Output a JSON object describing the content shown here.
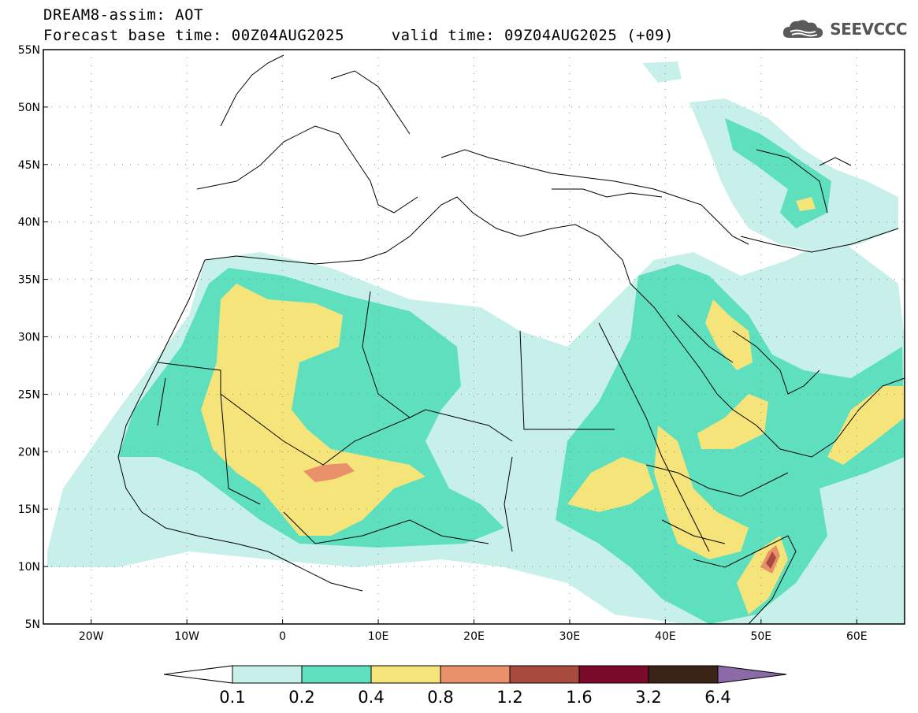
{
  "header": {
    "title_line1": "DREAM8-assim: AOT",
    "title_line2": "Forecast base time: 00Z04AUG2025     valid time: 09Z04AUG2025 (+09)"
  },
  "logo": {
    "text": "SEEVCCC",
    "icon": "cloud-icon"
  },
  "map": {
    "lon_range": [
      -25,
      65
    ],
    "lat_range": [
      5,
      55
    ],
    "y_ticks": [
      {
        "lat": 55,
        "label": "55N"
      },
      {
        "lat": 50,
        "label": "50N"
      },
      {
        "lat": 45,
        "label": "45N"
      },
      {
        "lat": 40,
        "label": "40N"
      },
      {
        "lat": 35,
        "label": "35N"
      },
      {
        "lat": 30,
        "label": "30N"
      },
      {
        "lat": 25,
        "label": "25N"
      },
      {
        "lat": 20,
        "label": "20N"
      },
      {
        "lat": 15,
        "label": "15N"
      },
      {
        "lat": 10,
        "label": "10N"
      },
      {
        "lat": 5,
        "label": "5N"
      }
    ],
    "x_ticks": [
      {
        "lon": -20,
        "label": "20W"
      },
      {
        "lon": -10,
        "label": "10W"
      },
      {
        "lon": 0,
        "label": "0"
      },
      {
        "lon": 10,
        "label": "10E"
      },
      {
        "lon": 20,
        "label": "20E"
      },
      {
        "lon": 30,
        "label": "30E"
      },
      {
        "lon": 40,
        "label": "40E"
      },
      {
        "lon": 50,
        "label": "50E"
      },
      {
        "lon": 60,
        "label": "60E"
      }
    ]
  },
  "colorbar": {
    "levels": [
      "0.1",
      "0.2",
      "0.4",
      "0.8",
      "1.2",
      "1.6",
      "3.2",
      "6.4"
    ],
    "colors": [
      "#ffffff",
      "#c8f0eb",
      "#5ee0be",
      "#f5e47a",
      "#e8906a",
      "#a84a3e",
      "#7a0a2a",
      "#3a2418",
      "#8c6aa8"
    ]
  }
}
